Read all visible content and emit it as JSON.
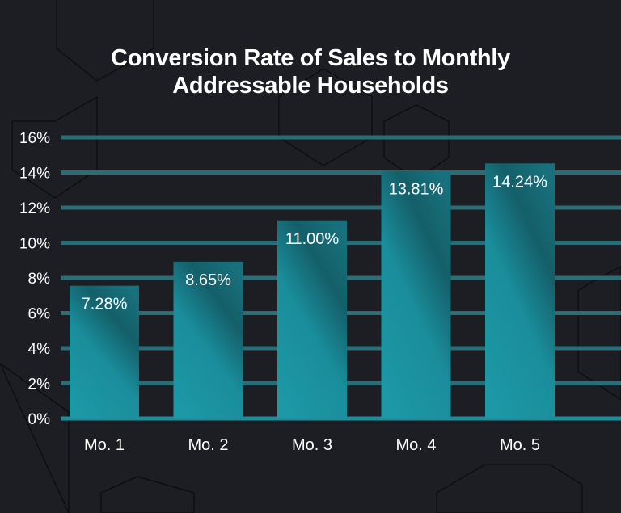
{
  "chart_data": {
    "type": "bar",
    "title_lines": [
      "Conversion Rate of Sales to Monthly",
      "Addressable Households"
    ],
    "categories": [
      "Mo. 1",
      "Mo. 2",
      "Mo. 3",
      "Mo. 4",
      "Mo. 5"
    ],
    "values": [
      7.28,
      8.65,
      11.0,
      13.81,
      14.24
    ],
    "data_labels": [
      "7.28%",
      "8.65%",
      "11.00%",
      "13.81%",
      "14.24%"
    ],
    "y_ticks": [
      "0%",
      "2%",
      "4%",
      "6%",
      "8%",
      "10%",
      "12%",
      "14%",
      "16%"
    ],
    "ylim": [
      0,
      16
    ],
    "grid": true,
    "xlabel": "",
    "ylabel": "",
    "colors": {
      "background": "#1c1e23",
      "bar_light": "#1c98a6",
      "bar_dark": "#145f69",
      "grid": "#2b6d76",
      "text": "#ffffff"
    }
  }
}
